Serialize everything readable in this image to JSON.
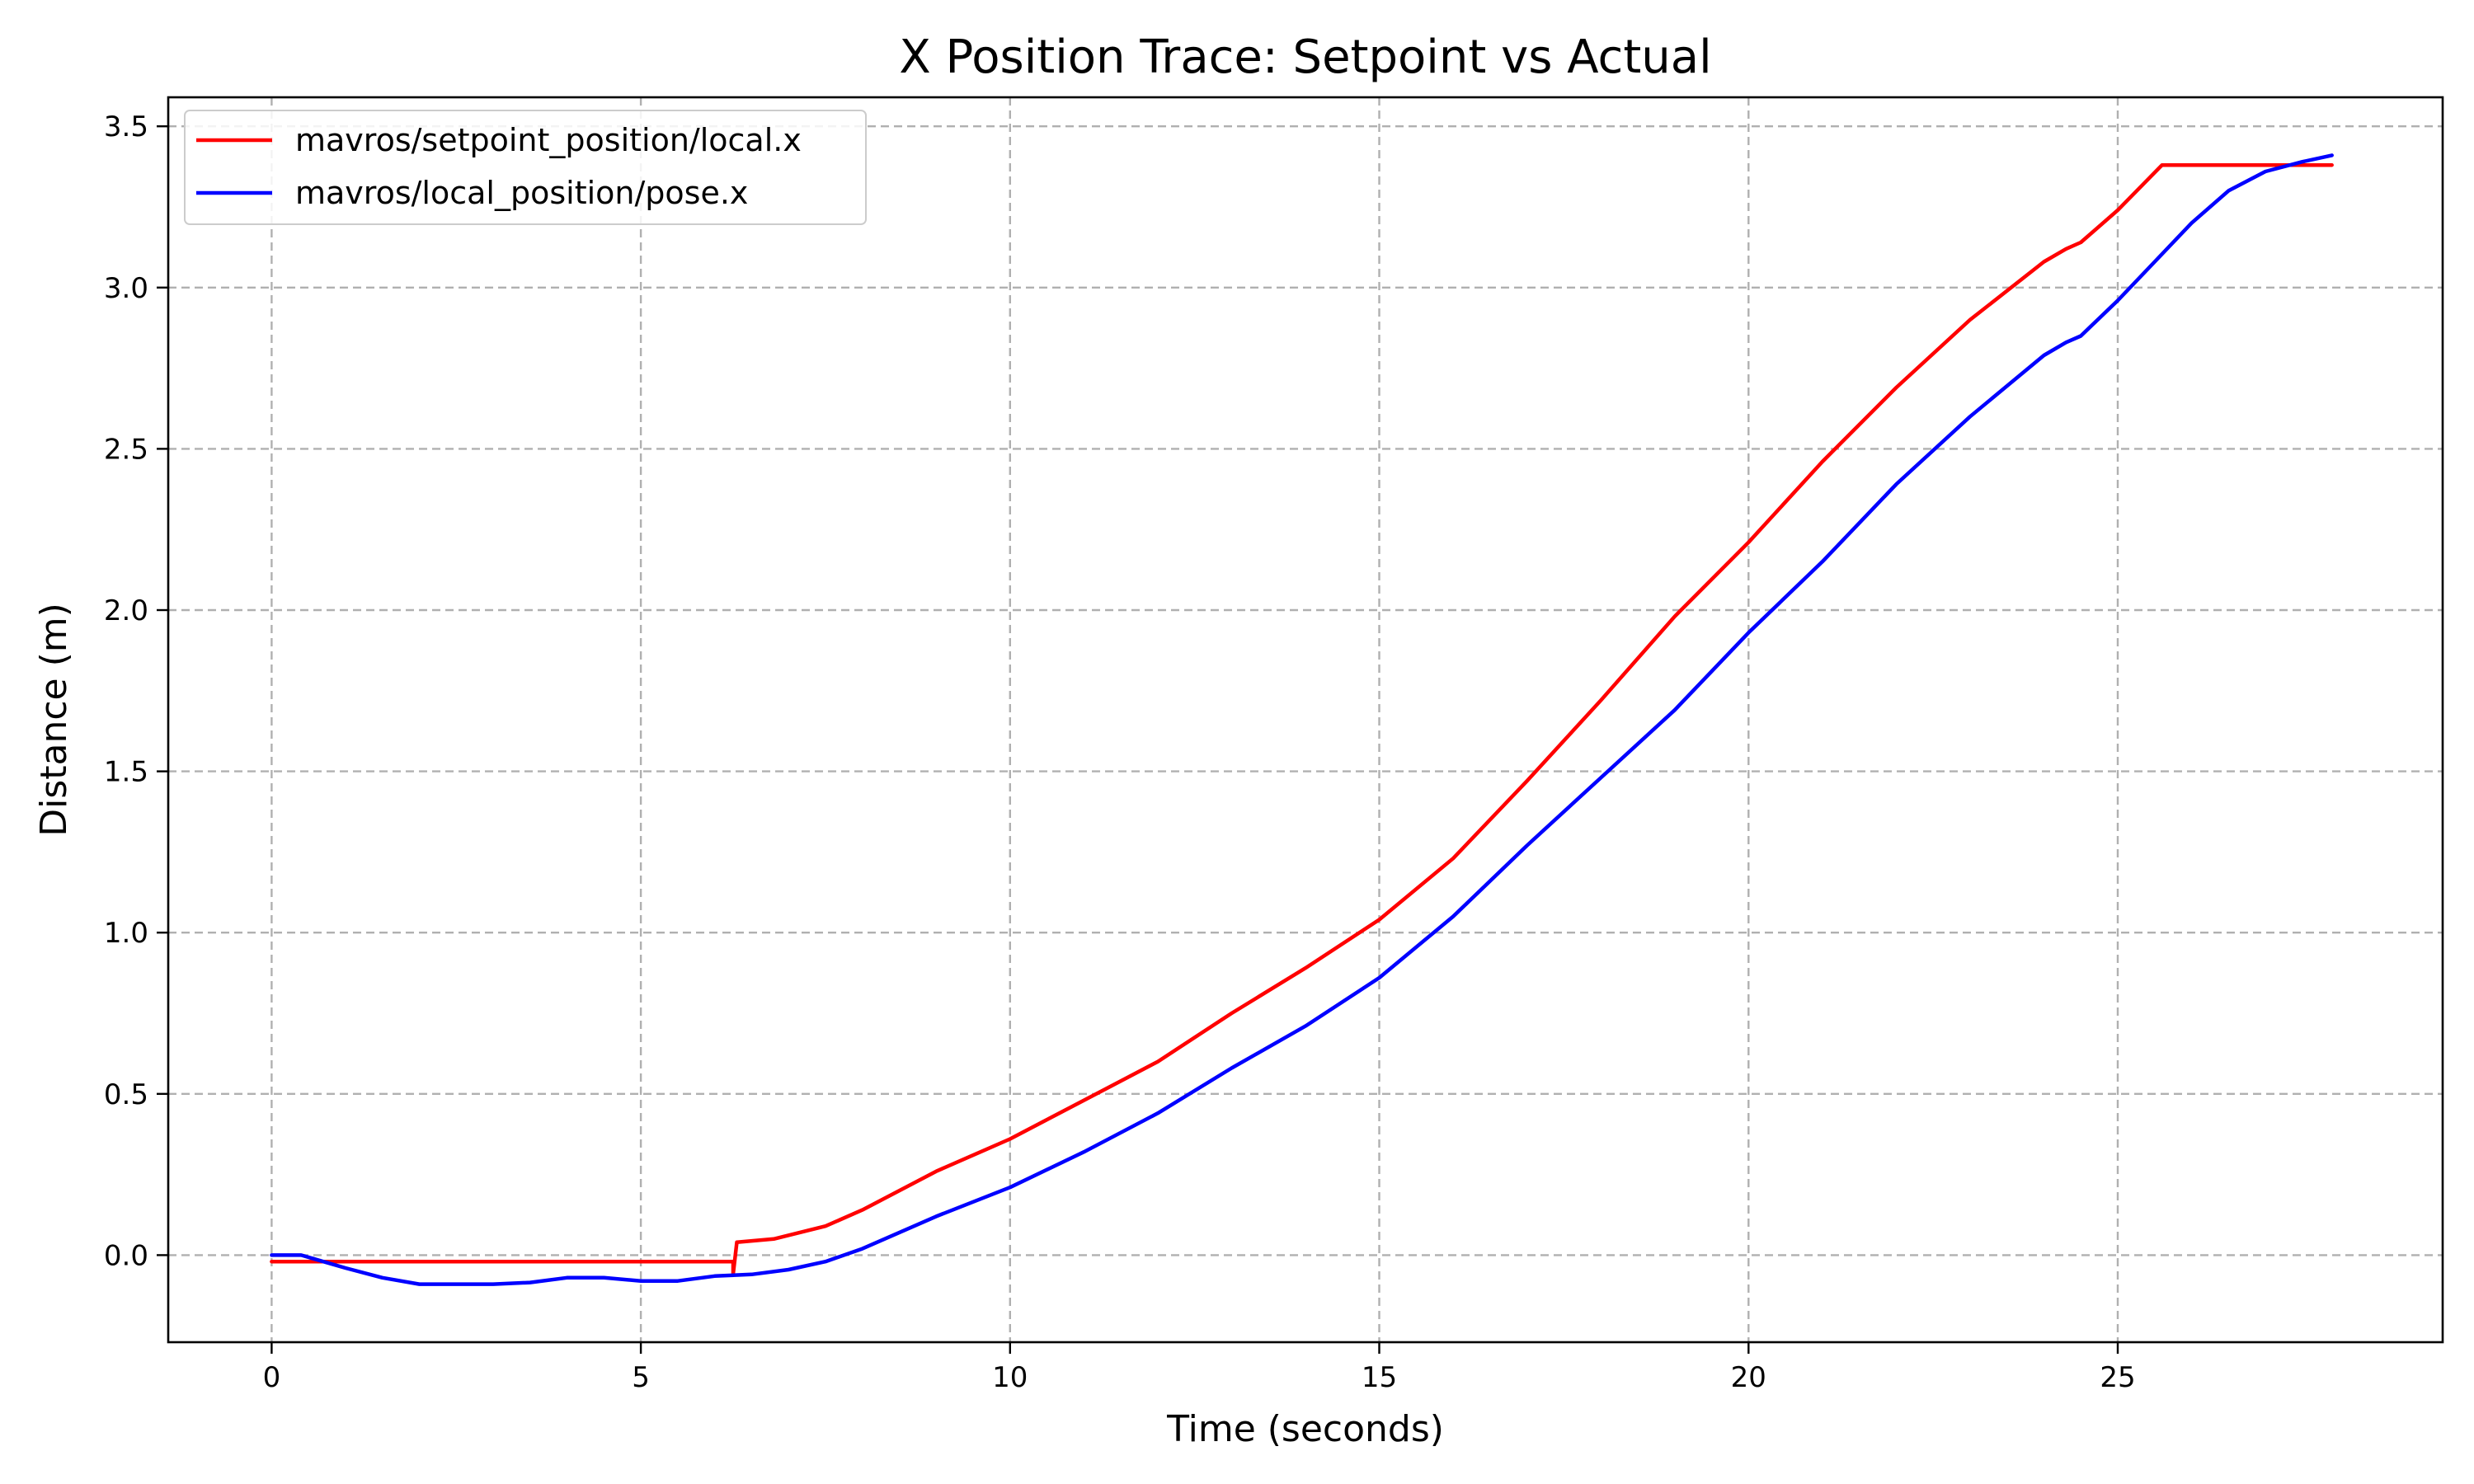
{
  "chart_data": {
    "type": "line",
    "title": "X Position Trace: Setpoint vs Actual",
    "xlabel": "Time (seconds)",
    "ylabel": "Distance (m)",
    "xlim": [
      -1.4,
      29.4
    ],
    "ylim": [
      -0.27,
      3.59
    ],
    "xticks": [
      0,
      5,
      10,
      15,
      20,
      25
    ],
    "yticks": [
      0.0,
      0.5,
      1.0,
      1.5,
      2.0,
      2.5,
      3.0,
      3.5
    ],
    "xtick_labels": [
      "0",
      "5",
      "10",
      "15",
      "20",
      "25"
    ],
    "ytick_labels": [
      "0.0",
      "0.5",
      "1.0",
      "1.5",
      "2.0",
      "2.5",
      "3.0",
      "3.5"
    ],
    "grid": true,
    "legend_position": "top-left",
    "series": [
      {
        "name": "mavros/setpoint_position/local.x",
        "color": "#ff0000",
        "x": [
          0,
          6.25,
          6.25,
          6.3,
          6.8,
          7.5,
          8.0,
          9.0,
          10.0,
          11.0,
          12.0,
          13.0,
          14.0,
          15.0,
          16.0,
          17.0,
          18.0,
          19.0,
          20.0,
          21.0,
          22.0,
          23.0,
          24.0,
          24.3,
          24.5,
          25.0,
          25.6,
          27.9
        ],
        "y": [
          -0.02,
          -0.02,
          -0.06,
          0.04,
          0.05,
          0.09,
          0.14,
          0.26,
          0.36,
          0.48,
          0.6,
          0.75,
          0.89,
          1.04,
          1.23,
          1.47,
          1.72,
          1.98,
          2.21,
          2.46,
          2.69,
          2.9,
          3.08,
          3.12,
          3.14,
          3.24,
          3.38,
          3.38
        ]
      },
      {
        "name": "mavros/local_position/pose.x",
        "color": "#0000ff",
        "x": [
          0,
          0.4,
          1.0,
          1.5,
          2.0,
          2.5,
          3.0,
          3.5,
          4.0,
          4.5,
          5.0,
          5.5,
          6.0,
          6.5,
          7.0,
          7.5,
          8.0,
          9.0,
          10.0,
          11.0,
          12.0,
          13.0,
          14.0,
          15.0,
          16.0,
          17.0,
          18.0,
          19.0,
          20.0,
          21.0,
          22.0,
          23.0,
          24.0,
          24.3,
          24.5,
          25.0,
          25.5,
          26.0,
          26.5,
          27.0,
          27.5,
          27.9
        ],
        "y": [
          0.0,
          0.0,
          -0.04,
          -0.07,
          -0.09,
          -0.09,
          -0.09,
          -0.085,
          -0.07,
          -0.07,
          -0.08,
          -0.08,
          -0.065,
          -0.06,
          -0.045,
          -0.02,
          0.02,
          0.12,
          0.21,
          0.32,
          0.44,
          0.58,
          0.71,
          0.86,
          1.05,
          1.27,
          1.48,
          1.69,
          1.93,
          2.15,
          2.39,
          2.6,
          2.79,
          2.83,
          2.85,
          2.96,
          3.08,
          3.2,
          3.3,
          3.36,
          3.39,
          3.41
        ]
      }
    ]
  }
}
